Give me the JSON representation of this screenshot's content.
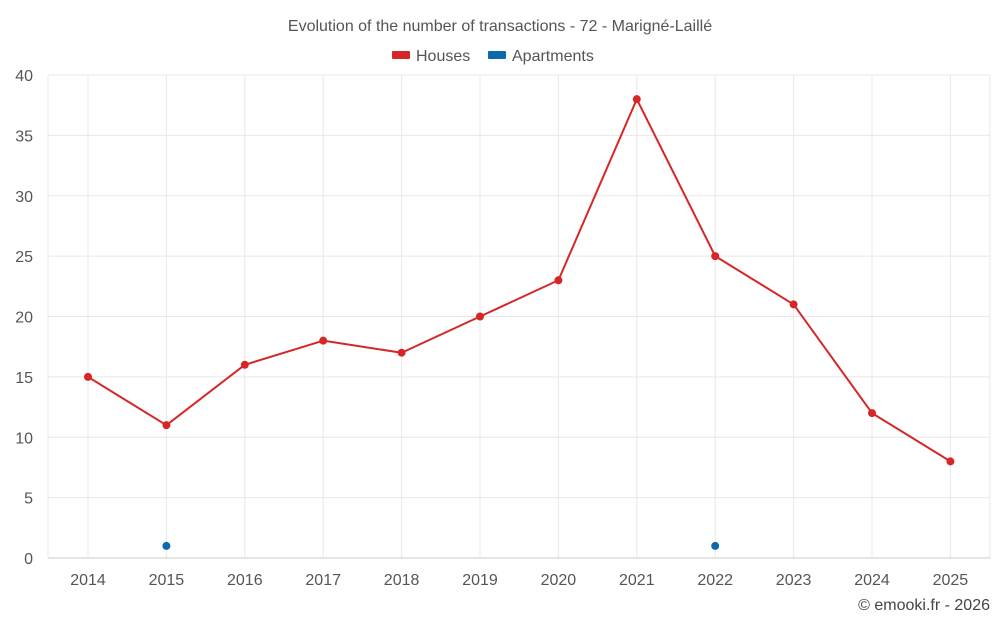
{
  "chart_data": {
    "type": "line",
    "title": "Evolution of the number of transactions - 72 - Marigné-Laillé",
    "xlabel": "",
    "ylabel": "",
    "categories": [
      "2014",
      "2015",
      "2016",
      "2017",
      "2018",
      "2019",
      "2020",
      "2021",
      "2022",
      "2023",
      "2024",
      "2025"
    ],
    "ylim": [
      0,
      40
    ],
    "yticks": [
      0,
      5,
      10,
      15,
      20,
      25,
      30,
      35,
      40
    ],
    "grid": true,
    "legend_position": "top-center",
    "series": [
      {
        "name": "Houses",
        "color": "#d62728",
        "values": [
          15,
          11,
          16,
          18,
          17,
          20,
          23,
          38,
          25,
          21,
          12,
          8
        ],
        "line": true
      },
      {
        "name": "Apartments",
        "color": "#0b6ba8",
        "values": [
          null,
          1,
          null,
          null,
          null,
          null,
          null,
          null,
          1,
          null,
          null,
          null
        ],
        "line": false
      }
    ]
  },
  "footer": {
    "credit": "© emooki.fr - 2026"
  }
}
